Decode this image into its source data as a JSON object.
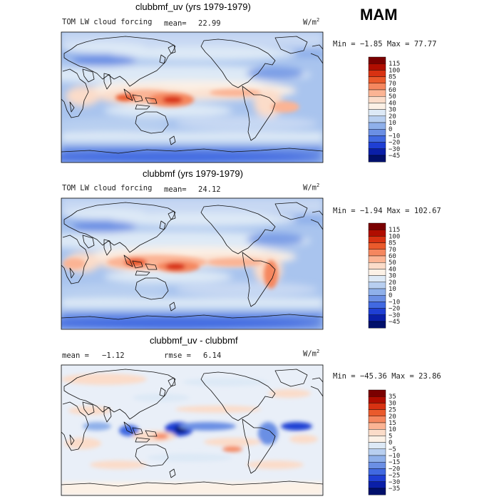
{
  "season": "MAM",
  "palette": {
    "levels_std": [
      "115",
      "100",
      "85",
      "70",
      "60",
      "50",
      "40",
      "30",
      "20",
      "10",
      "0",
      "−10",
      "−20",
      "−30",
      "−45"
    ],
    "levels_diff": [
      "35",
      "30",
      "25",
      "20",
      "15",
      "10",
      "5",
      "0",
      "−5",
      "−10",
      "−15",
      "−20",
      "−25",
      "−30",
      "−35"
    ],
    "colors": [
      "#7a0000",
      "#b00d00",
      "#d83212",
      "#ea5a2c",
      "#f5875f",
      "#fbb494",
      "#fbdcc9",
      "#fcf1e6",
      "#dde9f6",
      "#b8cff0",
      "#8fb0ea",
      "#6b8fe4",
      "#4169e1",
      "#1f3fd4",
      "#0a1fa8",
      "#01106b"
    ]
  },
  "panels": [
    {
      "title": "clubbmf_uv (yrs 1979-1979)",
      "variable": "TOM LW cloud forcing",
      "mean_label": "mean=",
      "mean": "22.99",
      "units_base": "W/m",
      "units_sup": "2",
      "min_label": "Min =",
      "min": "−1.85",
      "max_label": "Max =",
      "max": "77.77"
    },
    {
      "title": "clubbmf (yrs 1979-1979)",
      "variable": "TOM LW cloud forcing",
      "mean_label": "mean=",
      "mean": "24.12",
      "units_base": "W/m",
      "units_sup": "2",
      "min_label": "Min =",
      "min": "−1.94",
      "max_label": "Max =",
      "max": "102.67"
    },
    {
      "title": "clubbmf_uv - clubbmf",
      "mean_label": "mean =",
      "mean": "−1.12",
      "rmse_label": "rmse =",
      "rmse": "6.14",
      "units_base": "W/m",
      "units_sup": "2",
      "min_label": "Min =",
      "min": "−45.36",
      "max_label": "Max =",
      "max": "23.86"
    }
  ]
}
